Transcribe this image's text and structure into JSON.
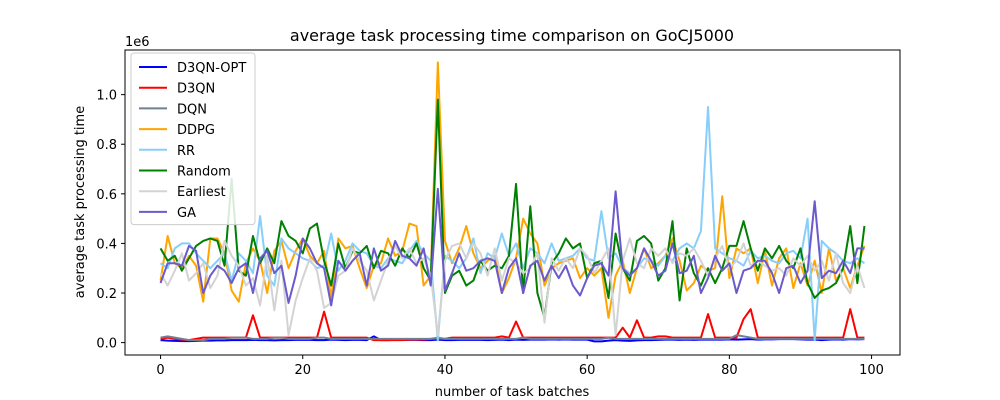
{
  "chart_data": {
    "type": "line",
    "title": "average task processing time comparison on GoCJ5000",
    "xlabel": "number of task batches",
    "ylabel": "average task processing time",
    "y_offset_label": "1e6",
    "xlim": [
      -5,
      104
    ],
    "ylim": [
      -50000,
      1180000
    ],
    "x_ticks": [
      0,
      20,
      40,
      60,
      80,
      100
    ],
    "x_tick_labels": [
      "0",
      "20",
      "40",
      "60",
      "80",
      "100"
    ],
    "y_ticks": [
      0,
      200000,
      400000,
      600000,
      800000,
      1000000
    ],
    "y_tick_labels": [
      "0.0",
      "0.2",
      "0.4",
      "0.6",
      "0.8",
      "1.0"
    ],
    "legend_position": "upper-left",
    "series": [
      {
        "name": "D3QN-OPT",
        "color": "#0000ff",
        "values": [
          10000,
          8000,
          7000,
          6000,
          6000,
          7000,
          8000,
          8000,
          9000,
          9000,
          10000,
          10000,
          10000,
          11000,
          10000,
          10000,
          9000,
          10000,
          10000,
          11000,
          11000,
          11000,
          10000,
          10000,
          12000,
          11000,
          10000,
          11000,
          11000,
          10000,
          25000,
          10000,
          10000,
          11000,
          11000,
          11000,
          11000,
          10000,
          10000,
          12000,
          10000,
          10000,
          11000,
          11000,
          11000,
          11000,
          10000,
          11000,
          12000,
          10000,
          12000,
          11000,
          12000,
          12000,
          12000,
          13000,
          12000,
          13000,
          12000,
          12000,
          12000,
          5000,
          5000,
          8000,
          10000,
          8000,
          7000,
          9000,
          10000,
          10000,
          11000,
          12000,
          12000,
          11000,
          12000,
          11000,
          12000,
          12000,
          12000,
          12000,
          13000,
          12000,
          13000,
          14000,
          12000,
          13000,
          13000,
          14000,
          14000,
          14000,
          13000,
          12000,
          12000,
          10000,
          12000,
          13000,
          12000,
          14000,
          13000,
          14000
        ]
      },
      {
        "name": "D3QN",
        "color": "#ff0000",
        "values": [
          15000,
          20000,
          15000,
          12000,
          10000,
          15000,
          20000,
          20000,
          20000,
          20000,
          20000,
          20000,
          20000,
          110000,
          20000,
          20000,
          20000,
          20000,
          20000,
          20000,
          20000,
          20000,
          20000,
          125000,
          20000,
          20000,
          20000,
          20000,
          20000,
          20000,
          10000,
          10000,
          10000,
          10000,
          10000,
          12000,
          12000,
          12000,
          15000,
          15000,
          15000,
          20000,
          20000,
          20000,
          20000,
          20000,
          20000,
          20000,
          25000,
          20000,
          85000,
          20000,
          20000,
          20000,
          20000,
          20000,
          20000,
          20000,
          20000,
          20000,
          20000,
          20000,
          20000,
          20000,
          20000,
          60000,
          20000,
          90000,
          20000,
          20000,
          25000,
          25000,
          20000,
          20000,
          20000,
          20000,
          20000,
          115000,
          20000,
          20000,
          20000,
          20000,
          95000,
          135000,
          20000,
          20000,
          20000,
          20000,
          20000,
          20000,
          20000,
          20000,
          20000,
          20000,
          20000,
          20000,
          20000,
          135000,
          20000,
          20000
        ]
      },
      {
        "name": "DQN",
        "color": "#708090",
        "values": [
          20000,
          25000,
          20000,
          15000,
          10000,
          10000,
          10000,
          15000,
          15000,
          15000,
          20000,
          20000,
          20000,
          15000,
          15000,
          15000,
          20000,
          20000,
          15000,
          15000,
          15000,
          15000,
          20000,
          20000,
          15000,
          15000,
          15000,
          15000,
          15000,
          15000,
          15000,
          15000,
          15000,
          15000,
          15000,
          15000,
          15000,
          15000,
          15000,
          20000,
          15000,
          15000,
          15000,
          15000,
          15000,
          15000,
          15000,
          15000,
          15000,
          15000,
          15000,
          20000,
          15000,
          15000,
          15000,
          15000,
          15000,
          15000,
          15000,
          15000,
          15000,
          15000,
          15000,
          20000,
          15000,
          15000,
          15000,
          15000,
          15000,
          15000,
          15000,
          15000,
          15000,
          15000,
          15000,
          15000,
          15000,
          15000,
          15000,
          15000,
          15000,
          30000,
          25000,
          20000,
          15000,
          15000,
          15000,
          15000,
          15000,
          15000,
          15000,
          15000,
          15000,
          15000,
          15000,
          15000,
          15000,
          15000,
          15000,
          15000
        ]
      },
      {
        "name": "DDPG",
        "color": "#ffa500",
        "values": [
          250000,
          430000,
          320000,
          300000,
          350000,
          310000,
          165000,
          420000,
          420000,
          360000,
          210000,
          165000,
          320000,
          380000,
          330000,
          200000,
          370000,
          410000,
          300000,
          370000,
          420000,
          350000,
          320000,
          370000,
          180000,
          420000,
          380000,
          390000,
          300000,
          220000,
          310000,
          320000,
          420000,
          350000,
          370000,
          480000,
          470000,
          230000,
          270000,
          1130000,
          410000,
          320000,
          380000,
          470000,
          360000,
          300000,
          330000,
          350000,
          200000,
          260000,
          340000,
          500000,
          440000,
          400000,
          230000,
          300000,
          320000,
          330000,
          340000,
          260000,
          300000,
          270000,
          300000,
          100000,
          270000,
          330000,
          200000,
          300000,
          380000,
          300000,
          320000,
          350000,
          420000,
          330000,
          210000,
          240000,
          310000,
          290000,
          300000,
          590000,
          260000,
          380000,
          360000,
          380000,
          240000,
          370000,
          230000,
          340000,
          380000,
          220000,
          320000,
          230000,
          330000,
          200000,
          380000,
          250000,
          300000,
          220000,
          310000,
          390000
        ]
      },
      {
        "name": "RR",
        "color": "#87cefa",
        "values": [
          320000,
          300000,
          380000,
          400000,
          400000,
          360000,
          330000,
          300000,
          330000,
          360000,
          250000,
          360000,
          330000,
          280000,
          510000,
          270000,
          230000,
          420000,
          380000,
          360000,
          340000,
          330000,
          300000,
          310000,
          440000,
          290000,
          330000,
          400000,
          370000,
          360000,
          310000,
          300000,
          340000,
          330000,
          320000,
          370000,
          410000,
          360000,
          330000,
          10000,
          350000,
          330000,
          300000,
          340000,
          420000,
          280000,
          360000,
          340000,
          440000,
          350000,
          400000,
          300000,
          380000,
          360000,
          320000,
          400000,
          330000,
          340000,
          350000,
          380000,
          340000,
          330000,
          530000,
          340000,
          360000,
          300000,
          280000,
          300000,
          340000,
          330000,
          310000,
          350000,
          330000,
          380000,
          400000,
          380000,
          450000,
          950000,
          380000,
          360000,
          340000,
          330000,
          310000,
          370000,
          340000,
          350000,
          330000,
          320000,
          360000,
          370000,
          340000,
          500000,
          10000,
          410000,
          380000,
          360000,
          330000,
          320000,
          340000,
          320000
        ]
      },
      {
        "name": "Random",
        "color": "#008000",
        "values": [
          380000,
          330000,
          350000,
          290000,
          340000,
          390000,
          410000,
          420000,
          410000,
          310000,
          660000,
          290000,
          270000,
          430000,
          320000,
          380000,
          320000,
          490000,
          430000,
          410000,
          360000,
          460000,
          480000,
          330000,
          230000,
          400000,
          300000,
          370000,
          360000,
          390000,
          300000,
          370000,
          360000,
          310000,
          380000,
          340000,
          400000,
          300000,
          250000,
          980000,
          200000,
          270000,
          290000,
          230000,
          250000,
          330000,
          290000,
          310000,
          300000,
          350000,
          640000,
          200000,
          550000,
          200000,
          100000,
          320000,
          360000,
          420000,
          380000,
          400000,
          260000,
          320000,
          330000,
          180000,
          440000,
          300000,
          250000,
          410000,
          430000,
          400000,
          250000,
          300000,
          490000,
          170000,
          380000,
          280000,
          230000,
          300000,
          240000,
          300000,
          390000,
          390000,
          490000,
          380000,
          290000,
          380000,
          340000,
          390000,
          330000,
          300000,
          380000,
          240000,
          180000,
          210000,
          220000,
          240000,
          300000,
          470000,
          240000,
          470000
        ]
      },
      {
        "name": "Earliest",
        "color": "#d3d3d3",
        "values": [
          280000,
          230000,
          290000,
          360000,
          250000,
          280000,
          320000,
          220000,
          270000,
          410000,
          350000,
          310000,
          230000,
          260000,
          150000,
          350000,
          130000,
          330000,
          30000,
          170000,
          260000,
          340000,
          290000,
          140000,
          160000,
          270000,
          290000,
          380000,
          330000,
          290000,
          170000,
          250000,
          330000,
          390000,
          340000,
          380000,
          320000,
          340000,
          270000,
          30000,
          330000,
          390000,
          400000,
          340000,
          400000,
          360000,
          270000,
          380000,
          250000,
          340000,
          320000,
          280000,
          300000,
          360000,
          80000,
          340000,
          290000,
          340000,
          300000,
          380000,
          350000,
          280000,
          330000,
          380000,
          30000,
          330000,
          420000,
          320000,
          300000,
          380000,
          350000,
          380000,
          320000,
          360000,
          350000,
          380000,
          330000,
          270000,
          340000,
          390000,
          300000,
          330000,
          400000,
          310000,
          330000,
          310000,
          290000,
          300000,
          270000,
          340000,
          310000,
          350000,
          290000,
          330000,
          250000,
          360000,
          240000,
          200000,
          310000,
          220000
        ]
      },
      {
        "name": "GA",
        "color": "#6a5acd",
        "values": [
          240000,
          320000,
          320000,
          310000,
          390000,
          370000,
          200000,
          270000,
          310000,
          290000,
          240000,
          300000,
          320000,
          200000,
          340000,
          370000,
          280000,
          310000,
          160000,
          270000,
          420000,
          380000,
          320000,
          300000,
          150000,
          330000,
          290000,
          330000,
          360000,
          230000,
          380000,
          290000,
          310000,
          410000,
          350000,
          340000,
          310000,
          380000,
          230000,
          620000,
          210000,
          280000,
          360000,
          290000,
          300000,
          330000,
          340000,
          330000,
          200000,
          300000,
          340000,
          200000,
          310000,
          330000,
          250000,
          310000,
          260000,
          310000,
          230000,
          190000,
          260000,
          310000,
          320000,
          270000,
          610000,
          300000,
          270000,
          300000,
          380000,
          330000,
          270000,
          290000,
          400000,
          280000,
          290000,
          350000,
          200000,
          260000,
          350000,
          290000,
          320000,
          200000,
          290000,
          300000,
          330000,
          330000,
          280000,
          200000,
          300000,
          310000,
          240000,
          290000,
          570000,
          260000,
          290000,
          280000,
          330000,
          280000,
          380000,
          380000
        ]
      }
    ]
  }
}
